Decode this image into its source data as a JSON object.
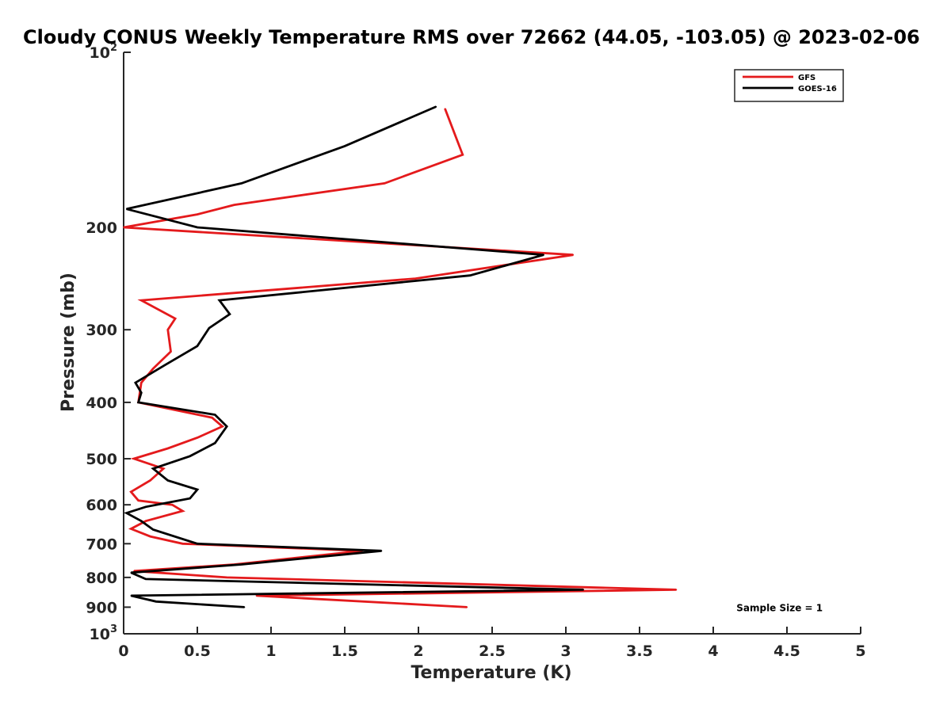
{
  "chart_data": {
    "type": "line",
    "title": "Cloudy CONUS Weekly Temperature RMS over 72662 (44.05, -103.05) @ 2023-02-06",
    "xlabel": "Temperature (K)",
    "ylabel": "Pressure (mb)",
    "xlim": [
      0,
      5
    ],
    "ylim": [
      100,
      1000
    ],
    "y_scale": "log",
    "y_reversed": true,
    "grid": false,
    "legend_position": "top-right",
    "x_ticks": [
      0,
      0.5,
      1,
      1.5,
      2,
      2.5,
      3,
      3.5,
      4,
      4.5,
      5
    ],
    "x_tick_labels": [
      "0",
      "0.5",
      "1",
      "1.5",
      "2",
      "2.5",
      "3",
      "3.5",
      "4",
      "4.5",
      "5"
    ],
    "y_ticks": [
      100,
      200,
      300,
      400,
      500,
      600,
      700,
      800,
      900,
      1000
    ],
    "y_tick_labels": [
      {
        "base": "10",
        "exp": "2"
      },
      {
        "base": "200",
        "exp": ""
      },
      {
        "base": "300",
        "exp": ""
      },
      {
        "base": "400",
        "exp": ""
      },
      {
        "base": "500",
        "exp": ""
      },
      {
        "base": "600",
        "exp": ""
      },
      {
        "base": "700",
        "exp": ""
      },
      {
        "base": "800",
        "exp": ""
      },
      {
        "base": "900",
        "exp": ""
      },
      {
        "base": "10",
        "exp": "3"
      }
    ],
    "series": [
      {
        "name": "GFS",
        "color": "#e41a1c",
        "points": [
          [
            2.18,
            125
          ],
          [
            2.3,
            150
          ],
          [
            1.77,
            168
          ],
          [
            0.75,
            183
          ],
          [
            0.5,
            190
          ],
          [
            0.0,
            200
          ],
          [
            3.05,
            223
          ],
          [
            1.98,
            245
          ],
          [
            0.12,
            267
          ],
          [
            0.35,
            287
          ],
          [
            0.3,
            300
          ],
          [
            0.32,
            327
          ],
          [
            0.2,
            350
          ],
          [
            0.12,
            370
          ],
          [
            0.1,
            400
          ],
          [
            0.6,
            425
          ],
          [
            0.67,
            440
          ],
          [
            0.5,
            460
          ],
          [
            0.3,
            480
          ],
          [
            0.07,
            500
          ],
          [
            0.27,
            520
          ],
          [
            0.18,
            545
          ],
          [
            0.05,
            570
          ],
          [
            0.1,
            590
          ],
          [
            0.33,
            600
          ],
          [
            0.4,
            615
          ],
          [
            0.15,
            640
          ],
          [
            0.05,
            660
          ],
          [
            0.18,
            680
          ],
          [
            0.4,
            700
          ],
          [
            1.62,
            720
          ],
          [
            0.75,
            760
          ],
          [
            0.07,
            780
          ],
          [
            0.7,
            800
          ],
          [
            3.75,
            840
          ],
          [
            0.9,
            860
          ],
          [
            2.33,
            900
          ]
        ]
      },
      {
        "name": "GOES-16",
        "color": "#000000",
        "points": [
          [
            2.12,
            124
          ],
          [
            1.5,
            145
          ],
          [
            0.8,
            168
          ],
          [
            0.02,
            186
          ],
          [
            0.5,
            200
          ],
          [
            2.85,
            223
          ],
          [
            2.35,
            242
          ],
          [
            0.65,
            267
          ],
          [
            0.72,
            282
          ],
          [
            0.58,
            298
          ],
          [
            0.5,
            320
          ],
          [
            0.28,
            345
          ],
          [
            0.08,
            370
          ],
          [
            0.12,
            385
          ],
          [
            0.1,
            400
          ],
          [
            0.62,
            420
          ],
          [
            0.7,
            440
          ],
          [
            0.62,
            470
          ],
          [
            0.45,
            495
          ],
          [
            0.2,
            520
          ],
          [
            0.3,
            545
          ],
          [
            0.5,
            565
          ],
          [
            0.45,
            585
          ],
          [
            0.15,
            605
          ],
          [
            0.02,
            620
          ],
          [
            0.12,
            640
          ],
          [
            0.2,
            662
          ],
          [
            0.5,
            700
          ],
          [
            1.75,
            720
          ],
          [
            0.8,
            760
          ],
          [
            0.05,
            785
          ],
          [
            0.15,
            805
          ],
          [
            3.12,
            840
          ],
          [
            0.05,
            860
          ],
          [
            0.22,
            880
          ],
          [
            0.82,
            900
          ]
        ]
      }
    ],
    "annotations": [
      {
        "text": "Sample Size = 1",
        "x": 4.45,
        "y": 900
      }
    ]
  }
}
